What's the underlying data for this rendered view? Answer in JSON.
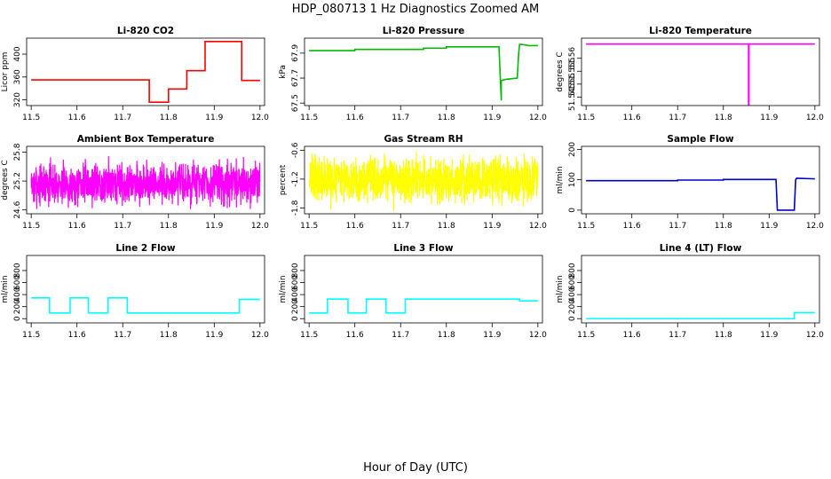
{
  "figure": {
    "title": "HDP_080713  1 Hz Diagnostics Zoomed AM",
    "xlabel": "Hour of Day (UTC)"
  },
  "chart_data": [
    {
      "type": "line",
      "title": "Li-820 CO2",
      "ylabel": "Licor ppm",
      "color": "#ff0000",
      "xlim": [
        11.49,
        12.01
      ],
      "ylim": [
        310,
        428
      ],
      "yticks": [
        320,
        360,
        400
      ],
      "xticks": [
        11.5,
        11.6,
        11.7,
        11.8,
        11.9,
        12.0
      ],
      "x": [
        11.5,
        11.758,
        11.758,
        11.8,
        11.8,
        11.84,
        11.84,
        11.88,
        11.88,
        11.96,
        11.96,
        12.0
      ],
      "y": [
        355,
        355,
        316,
        316,
        339,
        339,
        371,
        371,
        422,
        422,
        354,
        354
      ]
    },
    {
      "type": "line",
      "title": "Li-820 Pressure",
      "ylabel": "kPa",
      "color": "#00bb00",
      "xlim": [
        11.49,
        12.01
      ],
      "ylim": [
        67.48,
        68.02
      ],
      "yticks": [
        67.5,
        67.7,
        67.9
      ],
      "xticks": [
        11.5,
        11.6,
        11.7,
        11.8,
        11.9,
        12.0
      ],
      "x": [
        11.5,
        11.6,
        11.6,
        11.75,
        11.75,
        11.8,
        11.8,
        11.915,
        11.92,
        11.92,
        11.93,
        11.93,
        11.955,
        11.958,
        11.96,
        11.965,
        11.98,
        12.0
      ],
      "y": [
        67.92,
        67.92,
        67.93,
        67.93,
        67.94,
        67.94,
        67.95,
        67.95,
        67.52,
        67.68,
        67.69,
        67.69,
        67.7,
        67.9,
        67.97,
        67.97,
        67.96,
        67.96
      ]
    },
    {
      "type": "line",
      "title": "Li-820 Temperature",
      "ylabel": "degrees C",
      "color": "#ff00ff",
      "xlim": [
        11.49,
        12.01
      ],
      "ylim": [
        51.5417,
        51.5678
      ],
      "yticks": [
        51.545,
        51.55,
        51.555,
        51.56
      ],
      "xticks": [
        11.5,
        11.6,
        11.7,
        11.8,
        11.9,
        12.0
      ],
      "x": [
        11.5,
        11.855,
        11.855,
        11.856,
        11.856,
        12.0
      ],
      "y": [
        51.5655,
        51.5655,
        51.542,
        51.542,
        51.5655,
        51.5655
      ]
    },
    {
      "type": "line",
      "title": "Ambient Box Temperature",
      "ylabel": "degrees C",
      "color": "#ff00ff",
      "xlim": [
        11.49,
        12.01
      ],
      "ylim": [
        24.52,
        25.92
      ],
      "yticks": [
        24.6,
        25.2,
        25.8
      ],
      "xticks": [
        11.5,
        11.6,
        11.7,
        11.8,
        11.9,
        12.0
      ],
      "noise": {
        "center": 25.15,
        "low": 24.62,
        "high": 25.82,
        "seed": 7
      }
    },
    {
      "type": "line",
      "title": "Gas Stream RH",
      "ylabel": "percent",
      "color": "#ffff00",
      "xlim": [
        11.49,
        12.01
      ],
      "ylim": [
        -1.92,
        -0.52
      ],
      "yticks": [
        -1.8,
        -1.2,
        -0.6
      ],
      "xticks": [
        11.5,
        11.6,
        11.7,
        11.8,
        11.9,
        12.0
      ],
      "noise": {
        "center": -1.22,
        "low": -1.88,
        "high": -0.58,
        "seed": 13
      }
    },
    {
      "type": "line",
      "title": "Sample Flow",
      "ylabel": "ml/min",
      "color": "#0000cc",
      "xlim": [
        11.49,
        12.01
      ],
      "ylim": [
        -12,
        210
      ],
      "yticks": [
        0,
        100,
        200
      ],
      "xticks": [
        11.5,
        11.6,
        11.7,
        11.8,
        11.9,
        12.0
      ],
      "x": [
        11.5,
        11.7,
        11.7,
        11.8,
        11.8,
        11.915,
        11.918,
        11.955,
        11.958,
        11.96,
        12.0
      ],
      "y": [
        97,
        97,
        99,
        99,
        101,
        101,
        0,
        0,
        100,
        105,
        103
      ]
    },
    {
      "type": "line",
      "title": "Line 2 Flow",
      "ylabel": "ml/min",
      "color": "#00ffff",
      "xlim": [
        11.49,
        12.01
      ],
      "ylim": [
        -70,
        1050
      ],
      "yticks": [
        0,
        200,
        400,
        600,
        800
      ],
      "xticks": [
        11.5,
        11.6,
        11.7,
        11.8,
        11.9,
        12.0
      ],
      "x": [
        11.5,
        11.54,
        11.54,
        11.585,
        11.585,
        11.625,
        11.625,
        11.668,
        11.668,
        11.71,
        11.71,
        11.955,
        11.955,
        12.0
      ],
      "y": [
        345,
        345,
        95,
        95,
        345,
        345,
        95,
        95,
        345,
        345,
        95,
        95,
        320,
        320
      ]
    },
    {
      "type": "line",
      "title": "Line 3 Flow",
      "ylabel": "ml/min",
      "color": "#00ffff",
      "xlim": [
        11.49,
        12.01
      ],
      "ylim": [
        -70,
        1050
      ],
      "yticks": [
        0,
        200,
        400,
        600,
        800
      ],
      "xticks": [
        11.5,
        11.6,
        11.7,
        11.8,
        11.9,
        12.0
      ],
      "x": [
        11.5,
        11.54,
        11.54,
        11.585,
        11.585,
        11.625,
        11.625,
        11.668,
        11.668,
        11.71,
        11.71,
        11.96,
        11.96,
        12.0
      ],
      "y": [
        95,
        95,
        325,
        325,
        95,
        95,
        325,
        325,
        95,
        95,
        325,
        325,
        295,
        295
      ]
    },
    {
      "type": "line",
      "title": "Line 4 (LT) Flow",
      "ylabel": "ml/min",
      "color": "#00ffff",
      "xlim": [
        11.49,
        12.01
      ],
      "ylim": [
        -70,
        1050
      ],
      "yticks": [
        0,
        200,
        400,
        600,
        800
      ],
      "xticks": [
        11.5,
        11.6,
        11.7,
        11.8,
        11.9,
        12.0
      ],
      "x": [
        11.5,
        11.955,
        11.955,
        12.0
      ],
      "y": [
        0,
        0,
        100,
        100
      ]
    }
  ]
}
